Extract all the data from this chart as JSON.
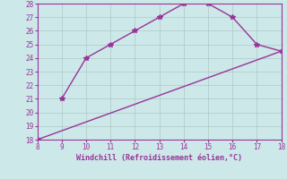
{
  "xlabel": "Windchill (Refroidissement éolien,°C)",
  "upper_line_x": [
    9,
    10,
    11,
    12,
    13,
    14,
    15,
    16,
    17,
    18
  ],
  "upper_line_y": [
    21,
    24,
    25,
    26,
    27,
    28,
    28,
    27,
    25,
    24.5
  ],
  "lower_line_x": [
    8,
    9,
    10,
    11,
    12,
    13,
    14,
    15,
    16,
    17,
    18
  ],
  "lower_line_y": [
    18,
    18.65,
    19.3,
    19.95,
    20.6,
    21.25,
    21.9,
    22.55,
    23.2,
    23.85,
    24.5
  ],
  "start_point_x": [
    8
  ],
  "start_point_y": [
    18
  ],
  "line_color": "#993399",
  "marker": "*",
  "marker_size": 4,
  "xlim": [
    8,
    18
  ],
  "ylim": [
    18,
    28
  ],
  "xticks": [
    8,
    9,
    10,
    11,
    12,
    13,
    14,
    15,
    16,
    17,
    18
  ],
  "yticks": [
    18,
    19,
    20,
    21,
    22,
    23,
    24,
    25,
    26,
    27,
    28
  ],
  "bg_color": "#cce8e8",
  "grid_color": "#b0c8c8"
}
